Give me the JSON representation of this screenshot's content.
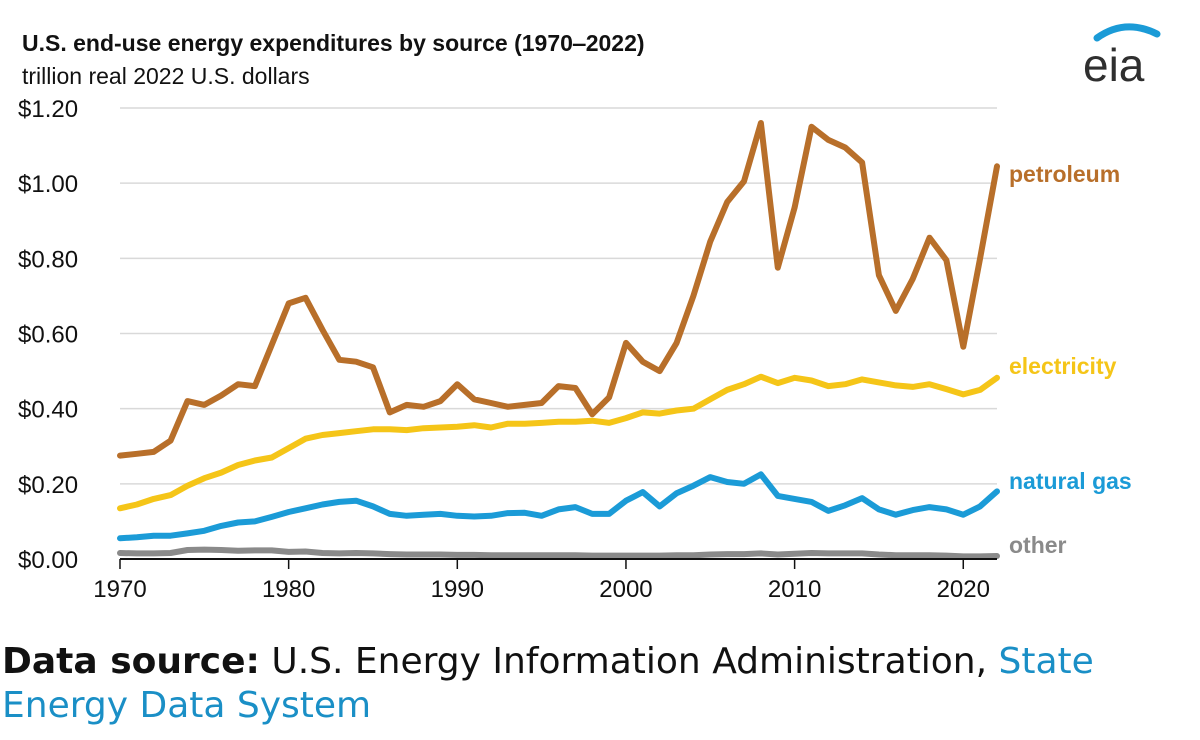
{
  "chart_data": {
    "type": "line",
    "title": "U.S. end-use energy expenditures by source (1970‒2022)",
    "subtitle": "trillion real 2022 U.S. dollars",
    "xlabel": "",
    "ylabel": "",
    "xlim": [
      1970,
      2022
    ],
    "ylim": [
      0,
      1.2
    ],
    "x_ticks": [
      1970,
      1980,
      1990,
      2000,
      2010,
      2020
    ],
    "y_ticks": [
      {
        "value": 0.0,
        "label": "$0.00"
      },
      {
        "value": 0.2,
        "label": "$0.20"
      },
      {
        "value": 0.4,
        "label": "$0.40"
      },
      {
        "value": 0.6,
        "label": "$0.60"
      },
      {
        "value": 0.8,
        "label": "$0.80"
      },
      {
        "value": 1.0,
        "label": "$1.00"
      },
      {
        "value": 1.2,
        "label": "$1.20"
      }
    ],
    "grid": "horizontal",
    "x": [
      1970,
      1971,
      1972,
      1973,
      1974,
      1975,
      1976,
      1977,
      1978,
      1979,
      1980,
      1981,
      1982,
      1983,
      1984,
      1985,
      1986,
      1987,
      1988,
      1989,
      1990,
      1991,
      1992,
      1993,
      1994,
      1995,
      1996,
      1997,
      1998,
      1999,
      2000,
      2001,
      2002,
      2003,
      2004,
      2005,
      2006,
      2007,
      2008,
      2009,
      2010,
      2011,
      2012,
      2013,
      2014,
      2015,
      2016,
      2017,
      2018,
      2019,
      2020,
      2021,
      2022
    ],
    "series": [
      {
        "name": "petroleum",
        "color": "#b86f2a",
        "values": [
          0.275,
          0.28,
          0.285,
          0.315,
          0.42,
          0.41,
          0.435,
          0.465,
          0.46,
          0.57,
          0.68,
          0.695,
          0.61,
          0.53,
          0.525,
          0.51,
          0.39,
          0.41,
          0.405,
          0.42,
          0.465,
          0.425,
          0.415,
          0.405,
          0.41,
          0.415,
          0.46,
          0.455,
          0.385,
          0.43,
          0.575,
          0.525,
          0.5,
          0.575,
          0.7,
          0.845,
          0.95,
          1.005,
          1.16,
          0.775,
          0.935,
          1.15,
          1.115,
          1.095,
          1.055,
          0.755,
          0.66,
          0.745,
          0.855,
          0.795,
          0.565,
          0.8,
          1.045
        ]
      },
      {
        "name": "electricity",
        "color": "#f5c518",
        "values": [
          0.135,
          0.145,
          0.16,
          0.17,
          0.195,
          0.215,
          0.23,
          0.25,
          0.262,
          0.27,
          0.295,
          0.32,
          0.33,
          0.335,
          0.34,
          0.345,
          0.345,
          0.343,
          0.348,
          0.35,
          0.352,
          0.356,
          0.35,
          0.36,
          0.36,
          0.362,
          0.365,
          0.365,
          0.368,
          0.362,
          0.375,
          0.39,
          0.387,
          0.395,
          0.4,
          0.425,
          0.45,
          0.465,
          0.485,
          0.468,
          0.482,
          0.475,
          0.46,
          0.465,
          0.478,
          0.47,
          0.462,
          0.458,
          0.465,
          0.452,
          0.438,
          0.45,
          0.482
        ]
      },
      {
        "name": "natural gas",
        "color": "#1b9bd7",
        "values": [
          0.055,
          0.058,
          0.062,
          0.062,
          0.068,
          0.075,
          0.088,
          0.097,
          0.1,
          0.112,
          0.125,
          0.135,
          0.145,
          0.152,
          0.155,
          0.14,
          0.12,
          0.115,
          0.118,
          0.12,
          0.115,
          0.113,
          0.115,
          0.122,
          0.123,
          0.115,
          0.132,
          0.138,
          0.12,
          0.12,
          0.155,
          0.178,
          0.14,
          0.175,
          0.195,
          0.218,
          0.205,
          0.2,
          0.225,
          0.168,
          0.16,
          0.152,
          0.128,
          0.143,
          0.162,
          0.132,
          0.118,
          0.13,
          0.138,
          0.132,
          0.118,
          0.14,
          0.18
        ]
      },
      {
        "name": "other",
        "color": "#8a8a8a",
        "values": [
          0.016,
          0.015,
          0.015,
          0.016,
          0.024,
          0.025,
          0.024,
          0.022,
          0.023,
          0.023,
          0.019,
          0.02,
          0.016,
          0.015,
          0.016,
          0.015,
          0.013,
          0.012,
          0.012,
          0.012,
          0.011,
          0.011,
          0.01,
          0.01,
          0.01,
          0.01,
          0.01,
          0.01,
          0.009,
          0.009,
          0.009,
          0.009,
          0.009,
          0.01,
          0.01,
          0.012,
          0.013,
          0.013,
          0.015,
          0.012,
          0.014,
          0.016,
          0.015,
          0.015,
          0.015,
          0.012,
          0.01,
          0.01,
          0.01,
          0.009,
          0.007,
          0.007,
          0.008
        ]
      }
    ]
  },
  "logo": {
    "text": "eia"
  },
  "footer": {
    "label": "Data source:",
    "text": " U.S. Energy Information Administration, ",
    "link": "State Energy Data System"
  }
}
